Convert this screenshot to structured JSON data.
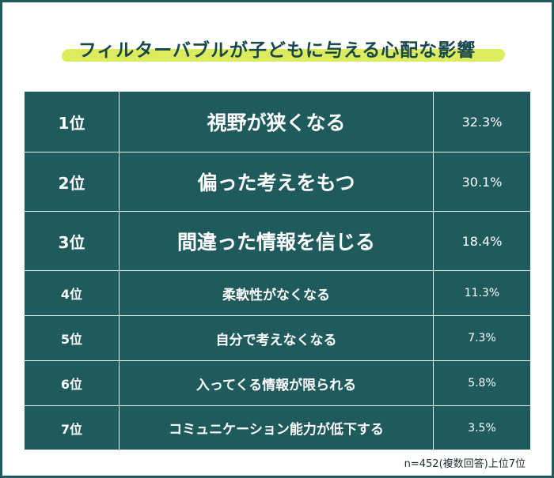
{
  "title": "フィルターバブルが子どもに与える心配な影響",
  "note": "n=452(複数回答)上位7位",
  "colors": {
    "table_bg": "#1f5a5c",
    "highlight": "#d9ea4d",
    "title_text": "#17474a"
  },
  "chart_data": {
    "type": "table",
    "title": "フィルターバブルが子どもに与える心配な影響",
    "unit": "%",
    "rows": [
      {
        "rank": "1位",
        "label": "視野が狭くなる",
        "value": 32.3,
        "value_text": "32.3%"
      },
      {
        "rank": "2位",
        "label": "偏った考えをもつ",
        "value": 30.1,
        "value_text": "30.1%"
      },
      {
        "rank": "3位",
        "label": "間違った情報を信じる",
        "value": 18.4,
        "value_text": "18.4%"
      },
      {
        "rank": "4位",
        "label": "柔軟性がなくなる",
        "value": 11.3,
        "value_text": "11.3%"
      },
      {
        "rank": "5位",
        "label": "自分で考えなくなる",
        "value": 7.3,
        "value_text": "7.3%"
      },
      {
        "rank": "6位",
        "label": "入ってくる情報が限られる",
        "value": 5.8,
        "value_text": "5.8%"
      },
      {
        "rank": "7位",
        "label": "コミュニケーション能力が低下する",
        "value": 3.5,
        "value_text": "3.5%"
      }
    ]
  }
}
